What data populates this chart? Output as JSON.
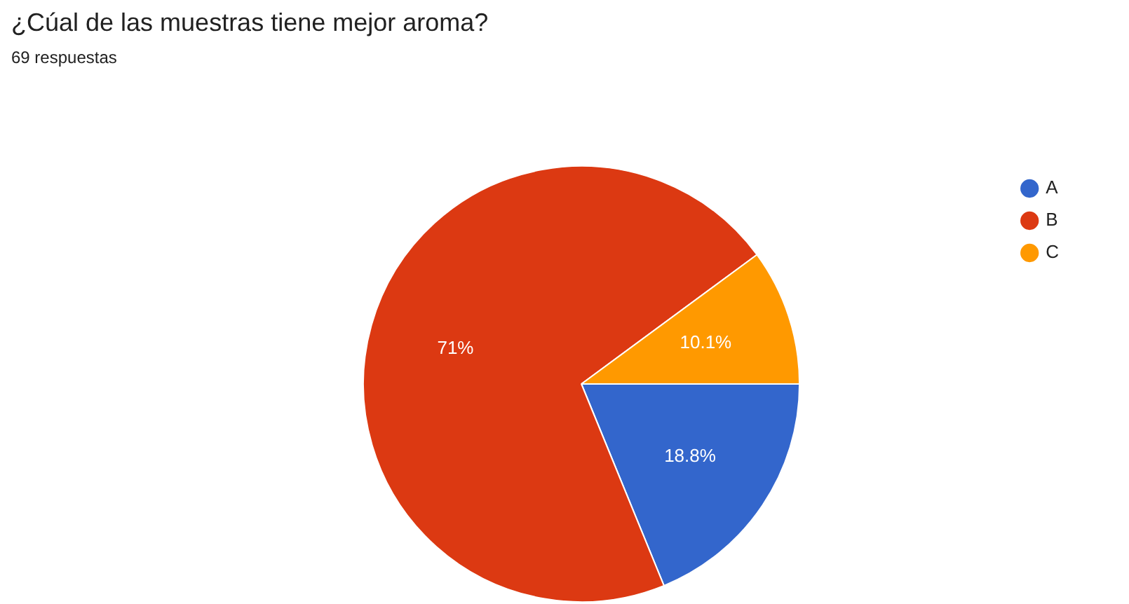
{
  "chart_data": {
    "type": "pie",
    "title": "¿Cúal de las muestras tiene mejor aroma?",
    "subtitle": "69 respuestas",
    "categories": [
      "A",
      "B",
      "C"
    ],
    "values": [
      18.8,
      71,
      10.1
    ],
    "value_labels": [
      "18.8%",
      "71%",
      "10.1%"
    ],
    "colors": [
      "#3366cc",
      "#dc3912",
      "#ff9900"
    ],
    "legend": "top right"
  }
}
